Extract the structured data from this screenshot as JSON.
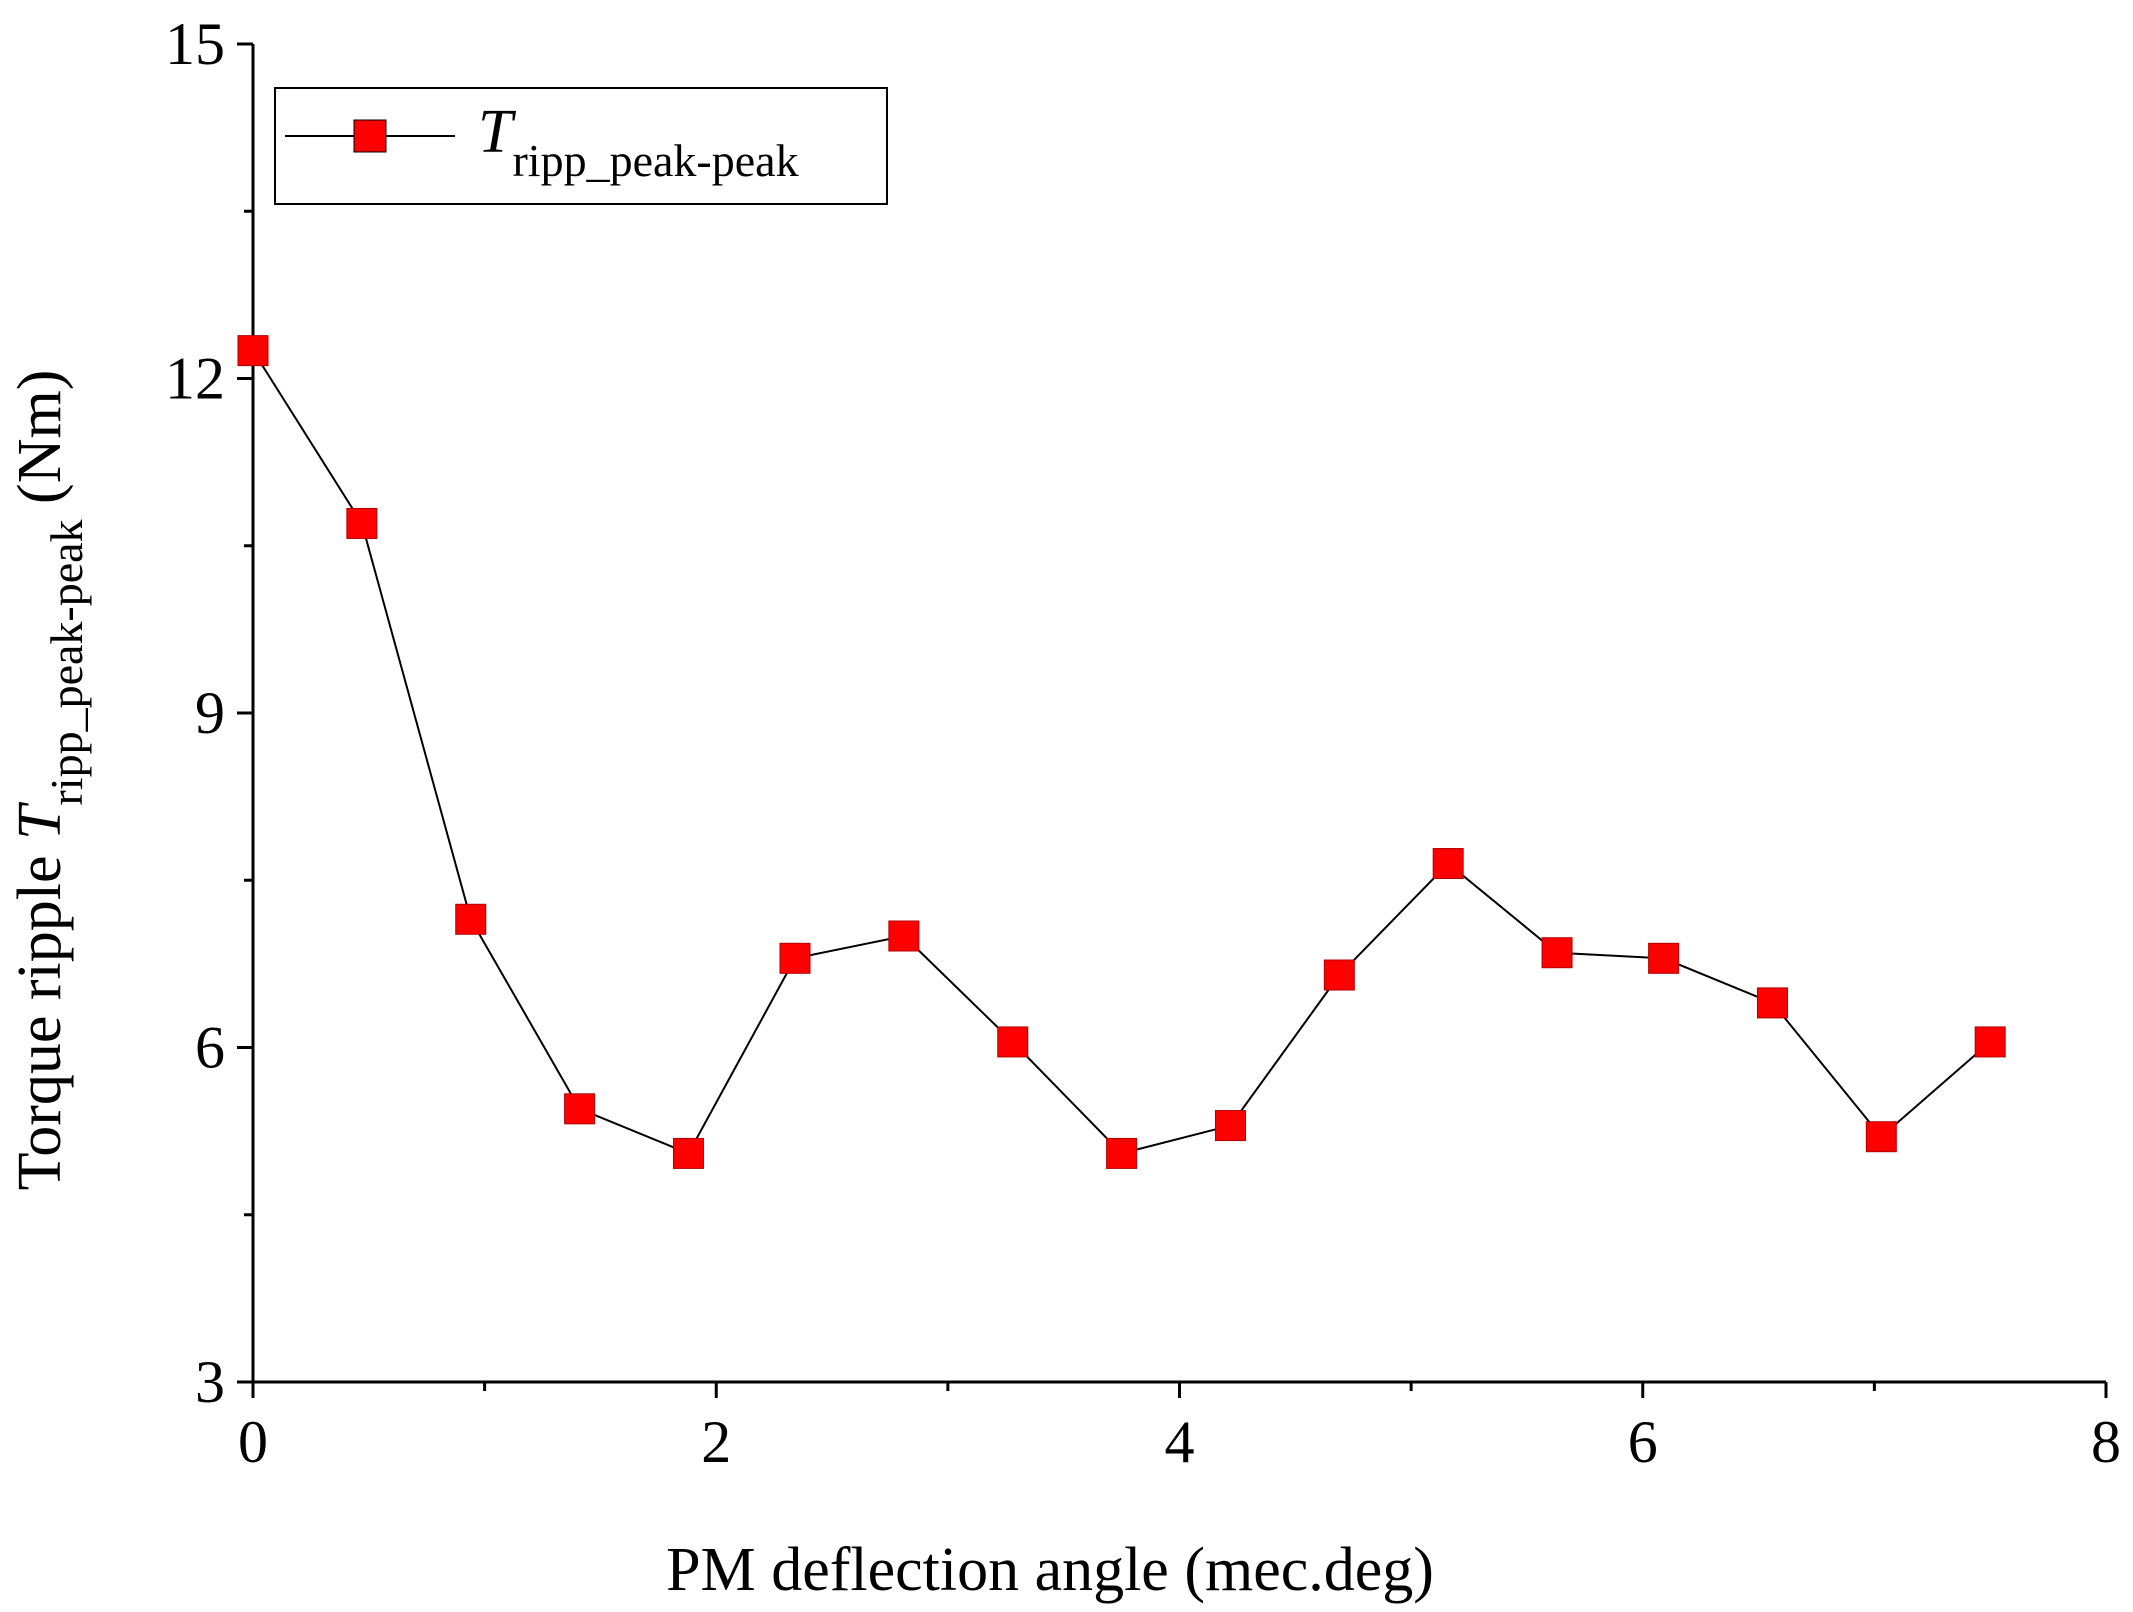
{
  "chart_data": {
    "type": "line",
    "title": "",
    "xlabel": "PM deflection angle (mec.deg)",
    "ylabel": {
      "prefix": "Torque ripple ",
      "symbol": "T",
      "subscript": "ripp_peak-peak",
      "suffix": " (Nm)"
    },
    "xlim": [
      0,
      8
    ],
    "ylim": [
      3,
      15
    ],
    "x_ticks": [
      0,
      2,
      4,
      6,
      8
    ],
    "x_tick_labels": [
      "0",
      "2",
      "4",
      "6",
      "8"
    ],
    "x_minor_ticks": [
      1,
      3,
      5,
      7
    ],
    "y_ticks": [
      3,
      6,
      9,
      12,
      15
    ],
    "y_tick_labels": [
      "3",
      "6",
      "9",
      "12",
      "15"
    ],
    "y_minor_ticks": [
      4.5,
      7.5,
      10.5,
      13.5
    ],
    "grid": false,
    "legend_position": "top-left",
    "series": [
      {
        "name": "T ripp_peak-peak",
        "legend_symbol": "T",
        "legend_subscript": "ripp_peak-peak",
        "marker": "square",
        "marker_color": "#ff0000",
        "line_color": "#000000",
        "x": [
          0,
          0.47,
          0.94,
          1.41,
          1.88,
          2.34,
          2.81,
          3.28,
          3.75,
          4.22,
          4.69,
          5.16,
          5.63,
          6.09,
          6.56,
          7.03,
          7.5
        ],
        "y": [
          12.25,
          10.7,
          7.15,
          5.45,
          5.05,
          6.8,
          7.0,
          6.05,
          5.05,
          5.3,
          6.65,
          7.65,
          6.85,
          6.8,
          6.4,
          5.2,
          6.05
        ]
      }
    ]
  }
}
